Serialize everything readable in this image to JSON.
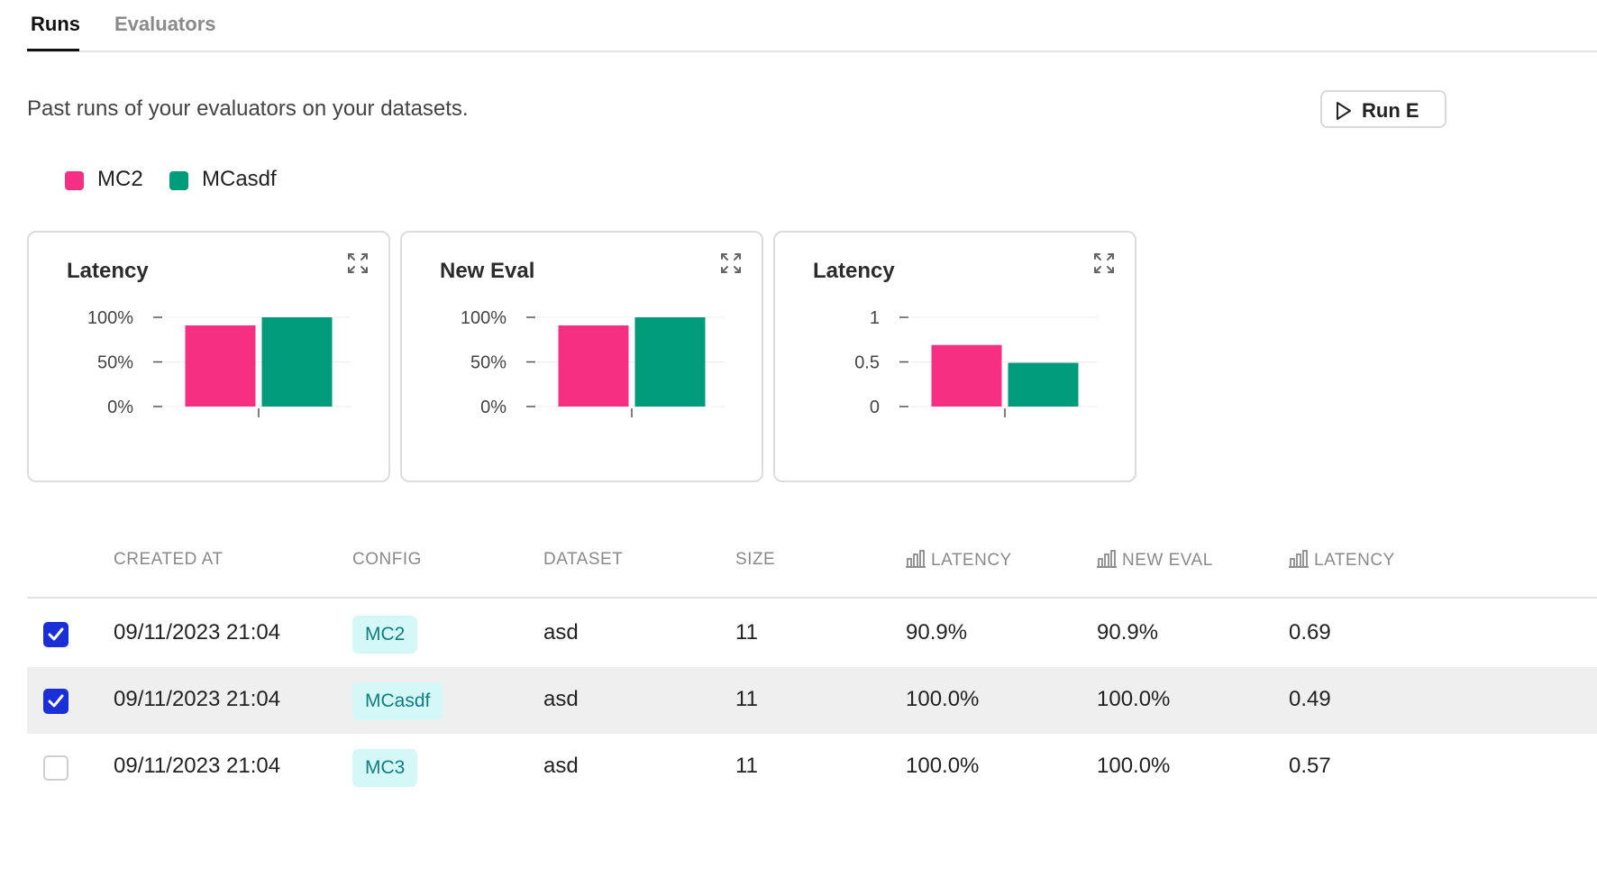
{
  "tabs": [
    {
      "label": "Runs",
      "active": true
    },
    {
      "label": "Evaluators",
      "active": false
    }
  ],
  "description": "Past runs of your evaluators on your datasets.",
  "run_button": {
    "label": "Run E",
    "icon": "play-icon"
  },
  "legend": [
    {
      "label": "MC2",
      "color": "#f72f83"
    },
    {
      "label": "MCasdf",
      "color": "#009b7b"
    }
  ],
  "charts": [
    {
      "title": "Latency",
      "icon": "expand-icon"
    },
    {
      "title": "New Eval",
      "icon": "expand-icon"
    },
    {
      "title": "Latency",
      "icon": "expand-icon"
    }
  ],
  "chart_data": [
    {
      "type": "bar",
      "title": "Latency",
      "categories": [
        ""
      ],
      "series": [
        {
          "name": "MC2",
          "values": [
            90.9
          ],
          "color": "#f72f83"
        },
        {
          "name": "MCasdf",
          "values": [
            100.0
          ],
          "color": "#009b7b"
        }
      ],
      "yticks": [
        "0%",
        "50%",
        "100%"
      ],
      "ylim": [
        0,
        100
      ],
      "grid": true
    },
    {
      "type": "bar",
      "title": "New Eval",
      "categories": [
        ""
      ],
      "series": [
        {
          "name": "MC2",
          "values": [
            90.9
          ],
          "color": "#f72f83"
        },
        {
          "name": "MCasdf",
          "values": [
            100.0
          ],
          "color": "#009b7b"
        }
      ],
      "yticks": [
        "0%",
        "50%",
        "100%"
      ],
      "ylim": [
        0,
        100
      ],
      "grid": true
    },
    {
      "type": "bar",
      "title": "Latency",
      "categories": [
        ""
      ],
      "series": [
        {
          "name": "MC2",
          "values": [
            0.69
          ],
          "color": "#f72f83"
        },
        {
          "name": "MCasdf",
          "values": [
            0.49
          ],
          "color": "#009b7b"
        }
      ],
      "yticks": [
        "0",
        "0.5",
        "1"
      ],
      "ylim": [
        0,
        1
      ],
      "grid": true
    }
  ],
  "table": {
    "headers": {
      "created_at": "CREATED AT",
      "config": "CONFIG",
      "dataset": "DATASET",
      "size": "SIZE",
      "latency1": "LATENCY",
      "new_eval": "NEW EVAL",
      "latency2": "LATENCY"
    },
    "rows": [
      {
        "checked": true,
        "created_at": "09/11/2023 21:04",
        "config": "MC2",
        "dataset": "asd",
        "size": "11",
        "latency1": "90.9%",
        "new_eval": "90.9%",
        "latency2": "0.69"
      },
      {
        "checked": true,
        "created_at": "09/11/2023 21:04",
        "config": "MCasdf",
        "dataset": "asd",
        "size": "11",
        "latency1": "100.0%",
        "new_eval": "100.0%",
        "latency2": "0.49"
      },
      {
        "checked": false,
        "created_at": "09/11/2023 21:04",
        "config": "MC3",
        "dataset": "asd",
        "size": "11",
        "latency1": "100.0%",
        "new_eval": "100.0%",
        "latency2": "0.57"
      }
    ]
  },
  "colors": {
    "accent": "#1a2fd6",
    "badge_bg": "#d4f7f7",
    "badge_text": "#107d80"
  }
}
